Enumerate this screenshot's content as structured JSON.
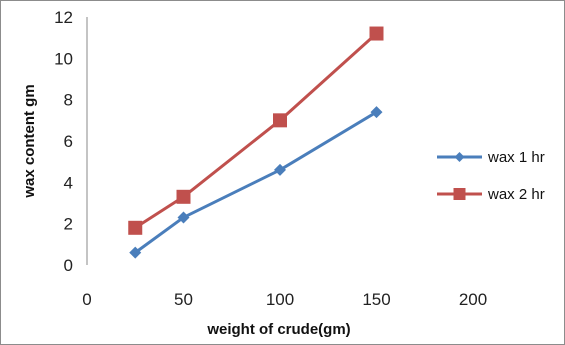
{
  "chart_data": {
    "type": "line",
    "xlabel": "weight of crude(gm)",
    "ylabel": "wax content gm",
    "xlim": [
      0,
      200
    ],
    "ylim": [
      0,
      12
    ],
    "xticks": [
      "0",
      "50",
      "100",
      "150",
      "200"
    ],
    "yticks": [
      "0",
      "2",
      "4",
      "6",
      "8",
      "10",
      "12"
    ],
    "grid": false,
    "legend_position": "right",
    "series": [
      {
        "name": "wax 1 hr",
        "color": "#4a7ebb",
        "marker": "diamond",
        "x": [
          25,
          50,
          100,
          150
        ],
        "y": [
          0.6,
          2.3,
          4.6,
          7.4
        ]
      },
      {
        "name": "wax 2 hr",
        "color": "#c0504d",
        "marker": "square",
        "x": [
          25,
          50,
          100,
          150
        ],
        "y": [
          1.8,
          3.3,
          7.0,
          11.2
        ]
      }
    ]
  }
}
